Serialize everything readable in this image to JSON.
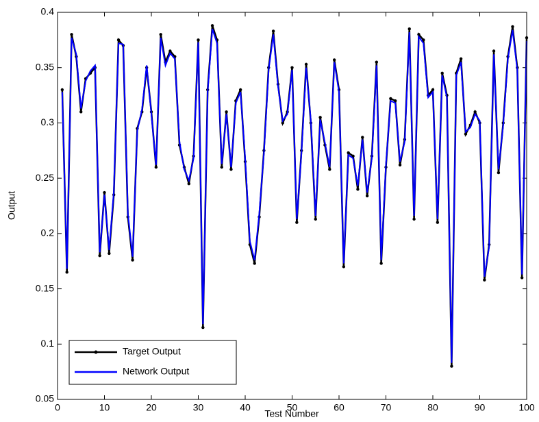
{
  "chart_data": {
    "type": "line",
    "xlabel": "Test Number",
    "ylabel": "Output",
    "x": [
      1,
      2,
      3,
      4,
      5,
      6,
      7,
      8,
      9,
      10,
      11,
      12,
      13,
      14,
      15,
      16,
      17,
      18,
      19,
      20,
      21,
      22,
      23,
      24,
      25,
      26,
      27,
      28,
      29,
      30,
      31,
      32,
      33,
      34,
      35,
      36,
      37,
      38,
      39,
      40,
      41,
      42,
      43,
      44,
      45,
      46,
      47,
      48,
      49,
      50,
      51,
      52,
      53,
      54,
      55,
      56,
      57,
      58,
      59,
      60,
      61,
      62,
      63,
      64,
      65,
      66,
      67,
      68,
      69,
      70,
      71,
      72,
      73,
      74,
      75,
      76,
      77,
      78,
      79,
      80,
      81,
      82,
      83,
      84,
      85,
      86,
      87,
      88,
      89,
      90,
      91,
      92,
      93,
      94,
      95,
      96,
      97,
      98,
      99,
      100
    ],
    "series": [
      {
        "name": "Target Output",
        "color": "#000000",
        "marker": true,
        "values": [
          0.33,
          0.165,
          0.38,
          0.36,
          0.31,
          0.34,
          0.345,
          0.35,
          0.18,
          0.237,
          0.182,
          0.235,
          0.375,
          0.37,
          0.215,
          0.176,
          0.295,
          0.31,
          0.35,
          0.31,
          0.26,
          0.38,
          0.355,
          0.365,
          0.36,
          0.28,
          0.26,
          0.245,
          0.27,
          0.375,
          0.115,
          0.33,
          0.388,
          0.375,
          0.26,
          0.31,
          0.258,
          0.32,
          0.33,
          0.265,
          0.19,
          0.173,
          0.215,
          0.275,
          0.35,
          0.383,
          0.335,
          0.3,
          0.31,
          0.35,
          0.21,
          0.275,
          0.353,
          0.3,
          0.213,
          0.305,
          0.28,
          0.258,
          0.357,
          0.33,
          0.17,
          0.273,
          0.27,
          0.24,
          0.287,
          0.234,
          0.27,
          0.355,
          0.173,
          0.26,
          0.322,
          0.32,
          0.262,
          0.285,
          0.385,
          0.213,
          0.38,
          0.375,
          0.325,
          0.33,
          0.21,
          0.345,
          0.325,
          0.08,
          0.345,
          0.358,
          0.29,
          0.298,
          0.31,
          0.3,
          0.158,
          0.19,
          0.365,
          0.255,
          0.3,
          0.36,
          0.387,
          0.35,
          0.16,
          0.377
        ]
      },
      {
        "name": "Network Output",
        "color": "#0000ff",
        "marker": false,
        "values": [
          0.328,
          0.168,
          0.377,
          0.362,
          0.313,
          0.338,
          0.347,
          0.352,
          0.183,
          0.235,
          0.185,
          0.238,
          0.372,
          0.371,
          0.218,
          0.179,
          0.293,
          0.312,
          0.352,
          0.308,
          0.262,
          0.377,
          0.352,
          0.363,
          0.358,
          0.283,
          0.258,
          0.248,
          0.268,
          0.373,
          0.118,
          0.328,
          0.385,
          0.372,
          0.263,
          0.308,
          0.26,
          0.318,
          0.328,
          0.268,
          0.193,
          0.176,
          0.218,
          0.273,
          0.348,
          0.38,
          0.333,
          0.302,
          0.308,
          0.348,
          0.213,
          0.273,
          0.35,
          0.302,
          0.216,
          0.303,
          0.282,
          0.26,
          0.355,
          0.328,
          0.173,
          0.271,
          0.268,
          0.243,
          0.285,
          0.237,
          0.268,
          0.352,
          0.176,
          0.262,
          0.32,
          0.318,
          0.265,
          0.283,
          0.382,
          0.216,
          0.378,
          0.372,
          0.323,
          0.328,
          0.213,
          0.343,
          0.323,
          0.083,
          0.343,
          0.355,
          0.292,
          0.296,
          0.308,
          0.302,
          0.161,
          0.188,
          0.362,
          0.258,
          0.298,
          0.358,
          0.384,
          0.348,
          0.163,
          0.374
        ]
      }
    ],
    "xlim": [
      0,
      100
    ],
    "xticks": [
      0,
      10,
      20,
      30,
      40,
      50,
      60,
      70,
      80,
      90,
      100
    ],
    "ylim": [
      0.05,
      0.4
    ],
    "yticks": [
      0.05,
      0.1,
      0.15,
      0.2,
      0.25,
      0.3,
      0.35,
      0.4
    ],
    "legend": "lower left"
  }
}
